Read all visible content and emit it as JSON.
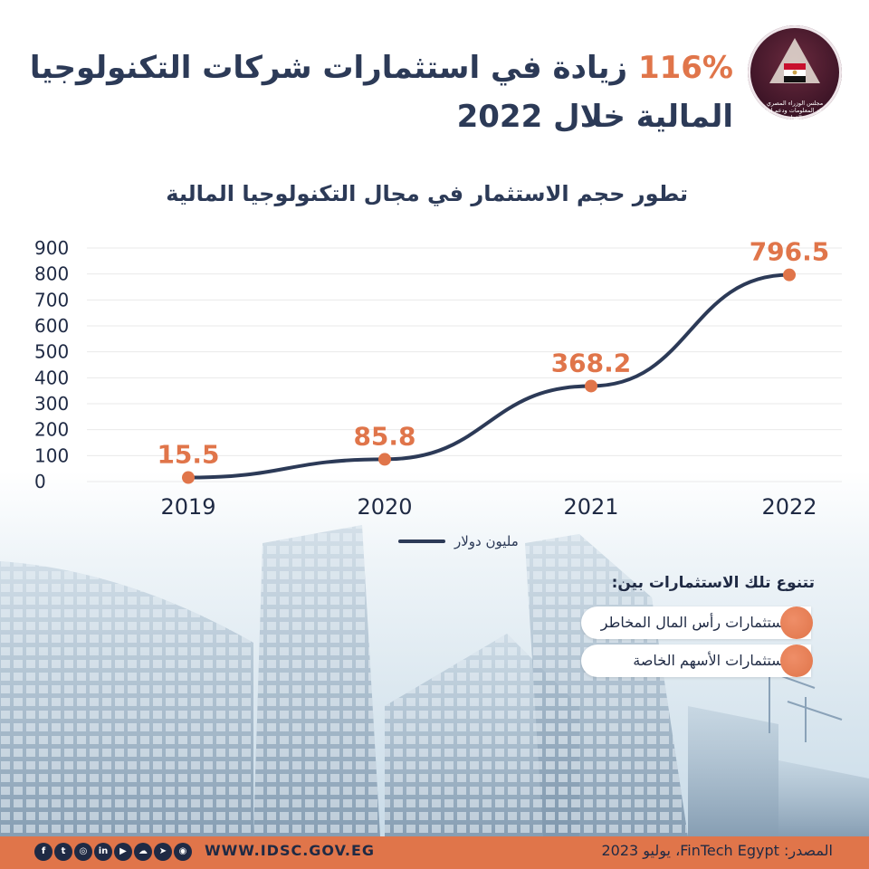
{
  "logo": {
    "line1": "مجلس الوزراء المصري",
    "line2": "مركز المعلومات ودعم اتخاذ القرار",
    "colors": {
      "bg": "#3c1426",
      "flag_red": "#c8102e",
      "flag_black": "#111111"
    }
  },
  "headline": {
    "percent": "116%",
    "line1_rest": "زيادة في استثمارات شركات التكنولوجيا",
    "line2": "المالية خلال 2022"
  },
  "chart_data": {
    "type": "line",
    "title": "تطور حجم الاستثمار في مجال التكنولوجيا المالية",
    "x": [
      "2019",
      "2020",
      "2021",
      "2022"
    ],
    "series": [
      {
        "name": "مليون دولار",
        "values": [
          15.5,
          85.8,
          368.2,
          796.5
        ],
        "labels": [
          "15.5",
          "85.8",
          "368.2",
          "796.5"
        ]
      }
    ],
    "y_ticks": [
      "0",
      "100",
      "200",
      "300",
      "400",
      "500",
      "600",
      "700",
      "800",
      "900"
    ],
    "ylim": [
      0,
      900
    ],
    "grid": true,
    "legend_position": "bottom",
    "colors": {
      "line": "#2c3a57",
      "marker": "#e0754a",
      "label": "#e0754a",
      "grid": "#e9e9e9"
    }
  },
  "info": {
    "title": "تتنوع تلك الاستثمارات بين:",
    "items": [
      "استثمارات رأس المال المخاطر",
      "استثمارات الأسهم الخاصة"
    ]
  },
  "footer": {
    "website": "WWW.IDSC.GOV.EG",
    "source": "المصدر: FinTech Egypt، يوليو 2023",
    "social_icons": [
      "facebook-icon",
      "twitter-icon",
      "instagram-icon",
      "linkedin-icon",
      "youtube-icon",
      "soundcloud-icon",
      "telegram-icon",
      "snapchat-icon"
    ],
    "social_glyphs": [
      "f",
      "t",
      "◎",
      "in",
      "▶",
      "☁",
      "➤",
      "◉"
    ],
    "colors": {
      "bar": "#e0754a",
      "icon_bg": "#1f2a44"
    }
  }
}
